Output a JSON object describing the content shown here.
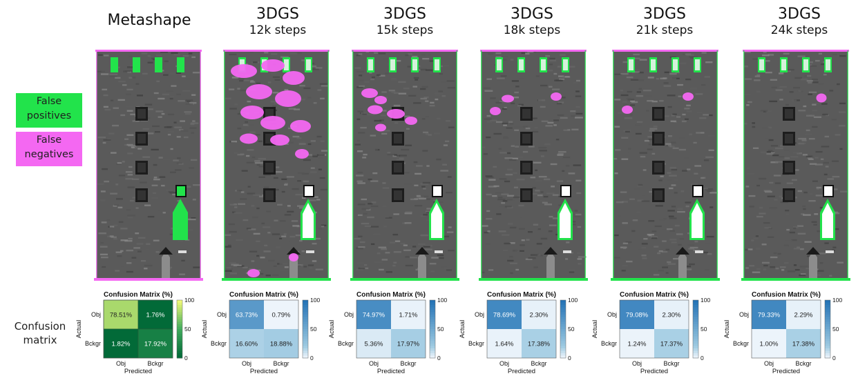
{
  "columns": [
    {
      "title": "Metashape",
      "subtitle": ""
    },
    {
      "title": "3DGS",
      "subtitle": "12k steps"
    },
    {
      "title": "3DGS",
      "subtitle": "15k steps"
    },
    {
      "title": "3DGS",
      "subtitle": "18k steps"
    },
    {
      "title": "3DGS",
      "subtitle": "21k steps"
    },
    {
      "title": "3DGS",
      "subtitle": "24k steps"
    }
  ],
  "legend": {
    "false_positives": "False positives",
    "false_negatives": "False negatives",
    "false_positives_color": "#22e34b",
    "false_negatives_color": "#f468f2"
  },
  "confusion_label": "Confusion matrix",
  "chart_data": [
    {
      "type": "heatmap",
      "title": "Confusion Matrix (%)",
      "rows": [
        "Obj",
        "Bckgr"
      ],
      "cols": [
        "Obj",
        "Bckgr"
      ],
      "values": [
        [
          78.51,
          1.76
        ],
        [
          1.82,
          17.92
        ]
      ],
      "cell_labels": [
        [
          "78.51%",
          "1.76%"
        ],
        [
          "1.82%",
          "17.92%"
        ]
      ],
      "xlabel": "Predicted",
      "ylabel": "Actual",
      "colorbar_ticks": [
        "100",
        "50",
        "0"
      ],
      "colorbar_range": [
        0,
        100
      ],
      "colormap": "green-yellow"
    },
    {
      "type": "heatmap",
      "title": "Confusion Matrix (%)",
      "rows": [
        "Obj",
        "Bckgr"
      ],
      "cols": [
        "Obj",
        "Bckgr"
      ],
      "values": [
        [
          63.73,
          0.79
        ],
        [
          16.6,
          18.88
        ]
      ],
      "cell_labels": [
        [
          "63.73%",
          "0.79%"
        ],
        [
          "16.60%",
          "18.88%"
        ]
      ],
      "xlabel": "Predicted",
      "ylabel": "Actual",
      "colorbar_ticks": [
        "100",
        "50",
        "0"
      ],
      "colorbar_range": [
        0,
        100
      ],
      "colormap": "blues"
    },
    {
      "type": "heatmap",
      "title": "Confusion Matrix (%)",
      "rows": [
        "Obj",
        "Bckgr"
      ],
      "cols": [
        "Obj",
        "Bckgr"
      ],
      "values": [
        [
          74.97,
          1.71
        ],
        [
          5.36,
          17.97
        ]
      ],
      "cell_labels": [
        [
          "74.97%",
          "1.71%"
        ],
        [
          "5.36%",
          "17.97%"
        ]
      ],
      "xlabel": "Predicted",
      "ylabel": "Actual",
      "colorbar_ticks": [
        "100",
        "50",
        "0"
      ],
      "colorbar_range": [
        0,
        100
      ],
      "colormap": "blues"
    },
    {
      "type": "heatmap",
      "title": "Confusion Matrix (%)",
      "rows": [
        "Obj",
        "Bckgr"
      ],
      "cols": [
        "Obj",
        "Bckgr"
      ],
      "values": [
        [
          78.69,
          2.3
        ],
        [
          1.64,
          17.38
        ]
      ],
      "cell_labels": [
        [
          "78.69%",
          "2.30%"
        ],
        [
          "1.64%",
          "17.38%"
        ]
      ],
      "xlabel": "Predicted",
      "ylabel": "Actual",
      "colorbar_ticks": [
        "100",
        "50",
        "0"
      ],
      "colorbar_range": [
        0,
        100
      ],
      "colormap": "blues"
    },
    {
      "type": "heatmap",
      "title": "Confusion Matrix (%)",
      "rows": [
        "Obj",
        "Bckgr"
      ],
      "cols": [
        "Obj",
        "Bckgr"
      ],
      "values": [
        [
          79.08,
          2.3
        ],
        [
          1.24,
          17.37
        ]
      ],
      "cell_labels": [
        [
          "79.08%",
          "2.30%"
        ],
        [
          "1.24%",
          "17.37%"
        ]
      ],
      "xlabel": "Predicted",
      "ylabel": "Actual",
      "colorbar_ticks": [
        "100",
        "50",
        "0"
      ],
      "colorbar_range": [
        0,
        100
      ],
      "colormap": "blues"
    },
    {
      "type": "heatmap",
      "title": "Confusion Matrix (%)",
      "rows": [
        "Obj",
        "Bckgr"
      ],
      "cols": [
        "Obj",
        "Bckgr"
      ],
      "values": [
        [
          79.33,
          2.29
        ],
        [
          1.0,
          17.38
        ]
      ],
      "cell_labels": [
        [
          "79.33%",
          "2.29%"
        ],
        [
          "1.00%",
          "17.38%"
        ]
      ],
      "xlabel": "Predicted",
      "ylabel": "Actual",
      "colorbar_ticks": [
        "100",
        "50",
        "0"
      ],
      "colorbar_range": [
        0,
        100
      ],
      "colormap": "blues"
    }
  ]
}
